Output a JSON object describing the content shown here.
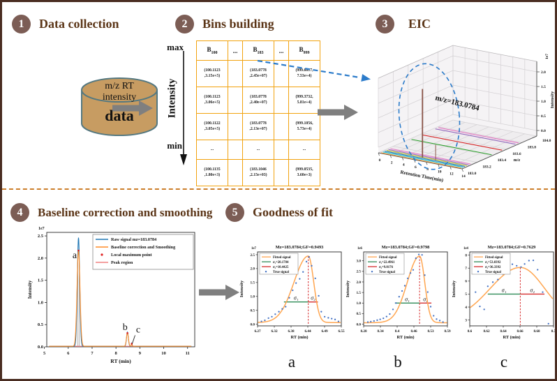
{
  "colors": {
    "frame": "#4a2d22",
    "step_circle": "#7c5d55",
    "title_text": "#5b3517",
    "table_border": "#f2a20d",
    "cylinder_fill": "#c79c62",
    "cylinder_stroke": "#547880",
    "gray_arrow": "#7f7f7f",
    "dashed_blue": "#2b7bca",
    "divider": "#cc7e2a",
    "raw_blue": "#1f77b4",
    "smooth_orange": "#ff8c26",
    "local_max_red": "#e02020",
    "peak_region_pink": "#f08080",
    "fitted_orange": "#ffa54f",
    "sigma1_green": "#2e8b57",
    "sigma2_red": "#d62f2f",
    "true_signal_blue": "#4472c4",
    "spike_brown": "#8c564b"
  },
  "steps": [
    {
      "num": "1",
      "title": "Data collection"
    },
    {
      "num": "2",
      "title": "Bins building"
    },
    {
      "num": "3",
      "title": "EIC"
    },
    {
      "num": "4",
      "title": "Baseline correction and smoothing"
    },
    {
      "num": "5",
      "title": "Goodness of fit"
    }
  ],
  "cylinder": {
    "line1": "m/z  RT",
    "line2": "intensity",
    "line3": "data"
  },
  "bins": {
    "max_label": "max",
    "min_label": "min",
    "axis_label": "Intensity",
    "headers": [
      {
        "base": "B",
        "sub": "100"
      },
      {
        "base": "...",
        "sub": ""
      },
      {
        "base": "B",
        "sub": "183"
      },
      {
        "base": "...",
        "sub": ""
      },
      {
        "base": "B",
        "sub": "999"
      }
    ],
    "rows": [
      [
        "(100.1123\n,3.15e+5)",
        "",
        "(183.0778\n,2.45e+07)",
        "",
        "(999.6017,\n7.53e+4)"
      ],
      [
        "(100.1123\n,3.06e+5)",
        "",
        "(183.0778\n,2.40e+07)",
        "",
        "(999.3732,\n5.81e+4)"
      ],
      [
        "(100.1122\n,3.05e+5)",
        "",
        "(183.0778\n,2.13e+07)",
        "",
        "(999.1056,\n5.73e+4)"
      ],
      [
        "...",
        "",
        "...",
        "",
        "..."
      ],
      [
        "(100.1135\n,1.80e+3)",
        "",
        "(183.1046\n,2.15e+03)",
        "",
        "(999.0535,\n3.60e+3)"
      ]
    ]
  },
  "chart_data": [
    {
      "name": "eic_3d",
      "type": "line",
      "xlabel": "Retention Time(min)",
      "xticks": [
        "0",
        "2",
        "4",
        "6",
        "8",
        "10",
        "12",
        "14"
      ],
      "ylabel": "m/z",
      "yticks": [
        "183.0",
        "183.2",
        "183.4",
        "183.6",
        "183.8",
        "184.0"
      ],
      "zlabel": "Intensity",
      "zoffset": "1e7",
      "zticks": [
        "0.0",
        "0.5",
        "1.0",
        "1.5",
        "2.0"
      ],
      "annotation": "m/z=183.0784",
      "spike": {
        "rt": 6.4,
        "mz": 183.0784,
        "intensity_1e7": 2.15
      },
      "small_spike": {
        "rt": 8.6,
        "intensity_1e7": 0.33
      },
      "traces": [
        {
          "mz_frac": 0.012,
          "color": "#e8973d"
        },
        {
          "mz_frac": 0.038,
          "color": "#17becf"
        },
        {
          "mz_frac": 0.062,
          "color": "#1f77b4"
        },
        {
          "mz_frac": 0.088,
          "color": "#bcbd22"
        },
        {
          "mz_frac": 0.112,
          "color": "#9467bd"
        },
        {
          "mz_frac": 0.138,
          "color": "#e377c2"
        },
        {
          "mz_frac": 0.42,
          "color": "#2ca02c"
        },
        {
          "mz_frac": 0.56,
          "color": "#d62728"
        },
        {
          "mz_frac": 0.74,
          "color": "#9467bd"
        },
        {
          "mz_frac": 0.78,
          "color": "#e377c2"
        }
      ]
    },
    {
      "name": "baseline_chromatogram",
      "type": "line",
      "xlabel": "RT (min)",
      "ylabel": "Intensity",
      "yoffset": "1e7",
      "xlim": [
        5.1,
        11.3
      ],
      "ylim": [
        0,
        2.58
      ],
      "xticks": [
        "5",
        "6",
        "7",
        "8",
        "9",
        "10",
        "11"
      ],
      "yticks": [
        "0.0",
        "0.5",
        "1.0",
        "1.5",
        "2.0",
        "2.5"
      ],
      "legend": [
        "Raw signal mz=183.0784",
        "Baseline correction and Smoothing",
        "Local maximum point",
        "Peak region"
      ],
      "raw_peaks": [
        {
          "center": 6.43,
          "sigma": 0.05,
          "amp": 2.45
        },
        {
          "center": 8.48,
          "sigma": 0.038,
          "amp": 0.32
        },
        {
          "center": 8.66,
          "sigma": 0.016,
          "amp": 0.07
        }
      ],
      "smooth_peaks": [
        {
          "center": 6.43,
          "sigma": 0.062,
          "amp": 2.16
        },
        {
          "center": 8.48,
          "sigma": 0.042,
          "amp": 0.3
        },
        {
          "center": 8.66,
          "sigma": 0.018,
          "amp": 0.06
        }
      ],
      "max_points": [
        [
          6.43,
          2.17
        ],
        [
          8.48,
          0.31
        ],
        [
          8.66,
          0.07
        ]
      ],
      "peak_regions": [
        [
          6.22,
          6.64
        ],
        [
          8.32,
          8.84
        ]
      ],
      "region_bounds": [
        6.4,
        6.46
      ],
      "peak_labels": [
        {
          "text": "a",
          "x": 6.18,
          "y": 2.0
        },
        {
          "text": "b",
          "x": 8.28,
          "y": 0.38
        },
        {
          "text": "c",
          "x": 8.84,
          "y": 0.32
        }
      ]
    },
    {
      "name": "fit_a",
      "type": "scatter",
      "label": "a",
      "title": "Mz=183.0784;GF=0.9493",
      "xlabel": "RT (min)",
      "ylabel": "Intensity",
      "yoffset": "1e7",
      "xlim": [
        6.245,
        6.567
      ],
      "ylim": [
        -0.06,
        2.6
      ],
      "xticks": [
        "6.27",
        "6.32",
        "6.38",
        "6.44",
        "6.49",
        "6.55"
      ],
      "yticks": [
        "0.0",
        "0.5",
        "1.0",
        "1.5",
        "2.0",
        "2.5"
      ],
      "legend": [
        "Fitted signal",
        "σ₁=20.1784",
        "σ₂=10.4425",
        "True signal"
      ],
      "fit": {
        "center": 6.44,
        "amp": 2.39,
        "base": 0.06,
        "sigma_l": 0.055,
        "sigma_r": 0.021
      },
      "sigma_line": {
        "y": 0.8,
        "x_left": 6.3465,
        "x_right": 6.477,
        "label1": "σ₁",
        "label2": "σ₂"
      },
      "points": [
        [
          6.26,
          0.1
        ],
        [
          6.273,
          0.14
        ],
        [
          6.287,
          0.22
        ],
        [
          6.3,
          0.27
        ],
        [
          6.313,
          0.36
        ],
        [
          6.327,
          0.45
        ],
        [
          6.34,
          0.55
        ],
        [
          6.353,
          0.63
        ],
        [
          6.367,
          0.95
        ],
        [
          6.38,
          1.22
        ],
        [
          6.393,
          1.48
        ],
        [
          6.407,
          1.63
        ],
        [
          6.42,
          1.88
        ],
        [
          6.433,
          2.25
        ],
        [
          6.443,
          2.42
        ],
        [
          6.453,
          2.1
        ],
        [
          6.467,
          1.65
        ],
        [
          6.48,
          1.02
        ],
        [
          6.49,
          0.45
        ],
        [
          6.503,
          0.27
        ],
        [
          6.517,
          0.23
        ],
        [
          6.53,
          0.2
        ],
        [
          6.543,
          0.17
        ],
        [
          6.556,
          0.1
        ]
      ]
    },
    {
      "name": "fit_b",
      "type": "scatter",
      "label": "b",
      "title": "Mz=183.0784;GF=0.9798",
      "xlabel": "RT (min)",
      "ylabel": "Intensity",
      "yoffset": "1e6",
      "xlim": [
        8.263,
        8.603
      ],
      "ylim": [
        -0.08,
        3.42
      ],
      "xticks": [
        "8.28",
        "8.34",
        "8.4",
        "8.46",
        "8.53",
        "8.59"
      ],
      "yticks": [
        "0.0",
        "0.5",
        "1.0",
        "1.5",
        "2.0",
        "2.5",
        "3.0"
      ],
      "legend": [
        "Fitted signal",
        "σ₁=22.4961",
        "σ₂=9.8176",
        "True signal"
      ],
      "fit": {
        "center": 8.49,
        "amp": 3.15,
        "base": 0.07,
        "sigma_l": 0.05,
        "sigma_r": 0.021
      },
      "sigma_line": {
        "y": 1.0,
        "x_left": 8.39,
        "x_right": 8.538,
        "label1": "σ₁",
        "label2": "σ₂"
      },
      "points": [
        [
          8.28,
          0.1
        ],
        [
          8.292,
          0.12
        ],
        [
          8.305,
          0.15
        ],
        [
          8.318,
          0.19
        ],
        [
          8.33,
          0.23
        ],
        [
          8.343,
          0.28
        ],
        [
          8.356,
          0.36
        ],
        [
          8.369,
          0.48
        ],
        [
          8.382,
          0.7
        ],
        [
          8.394,
          1.0
        ],
        [
          8.407,
          1.3
        ],
        [
          8.419,
          1.57
        ],
        [
          8.43,
          1.82
        ],
        [
          8.442,
          2.17
        ],
        [
          8.453,
          2.42
        ],
        [
          8.464,
          2.57
        ],
        [
          8.475,
          3.12
        ],
        [
          8.487,
          3.3
        ],
        [
          8.5,
          3.28
        ],
        [
          8.511,
          2.32
        ],
        [
          8.523,
          1.52
        ],
        [
          8.535,
          0.83
        ],
        [
          8.547,
          0.4
        ],
        [
          8.559,
          0.24
        ],
        [
          8.572,
          0.17
        ],
        [
          8.585,
          0.1
        ]
      ]
    },
    {
      "name": "fit_c",
      "type": "scatter",
      "label": "c",
      "title": "Mz=183.0784;GF=0.7629",
      "xlabel": "RT (min)",
      "ylabel": "Intensity",
      "yoffset": "1e4",
      "xlim": [
        8.592,
        8.708
      ],
      "ylim": [
        2.55,
        8.25
      ],
      "xticks": [
        "8.6",
        "8.62",
        "8.64",
        "8.66",
        "8.68",
        "8.7"
      ],
      "yticks": [
        "3",
        "4",
        "5",
        "6",
        "7",
        "8"
      ],
      "legend": [
        "Fitted signal",
        "σ₁=53.0392",
        "σ₂=36.3392",
        "True signal"
      ],
      "fit": {
        "center": 8.662,
        "amp": 4.15,
        "base": 2.9,
        "sigma_l": 0.042,
        "sigma_r": 0.034
      },
      "sigma_line": {
        "y": 5.0,
        "x_left": 8.617,
        "x_right": 8.6955,
        "label1": "σ₁",
        "label2": "σ₂"
      },
      "points": [
        [
          8.6,
          5.15
        ],
        [
          8.606,
          4.05
        ],
        [
          8.612,
          3.82
        ],
        [
          8.617,
          5.6
        ],
        [
          8.624,
          5.92
        ],
        [
          8.631,
          6.12
        ],
        [
          8.638,
          6.55
        ],
        [
          8.645,
          7.82
        ],
        [
          8.651,
          7.3
        ],
        [
          8.657,
          7.18
        ],
        [
          8.663,
          7.08
        ],
        [
          8.668,
          7.32
        ],
        [
          8.674,
          7.58
        ],
        [
          8.68,
          7.6
        ],
        [
          8.686,
          6.88
        ],
        [
          8.693,
          5.15
        ],
        [
          8.701,
          2.72
        ]
      ]
    }
  ]
}
